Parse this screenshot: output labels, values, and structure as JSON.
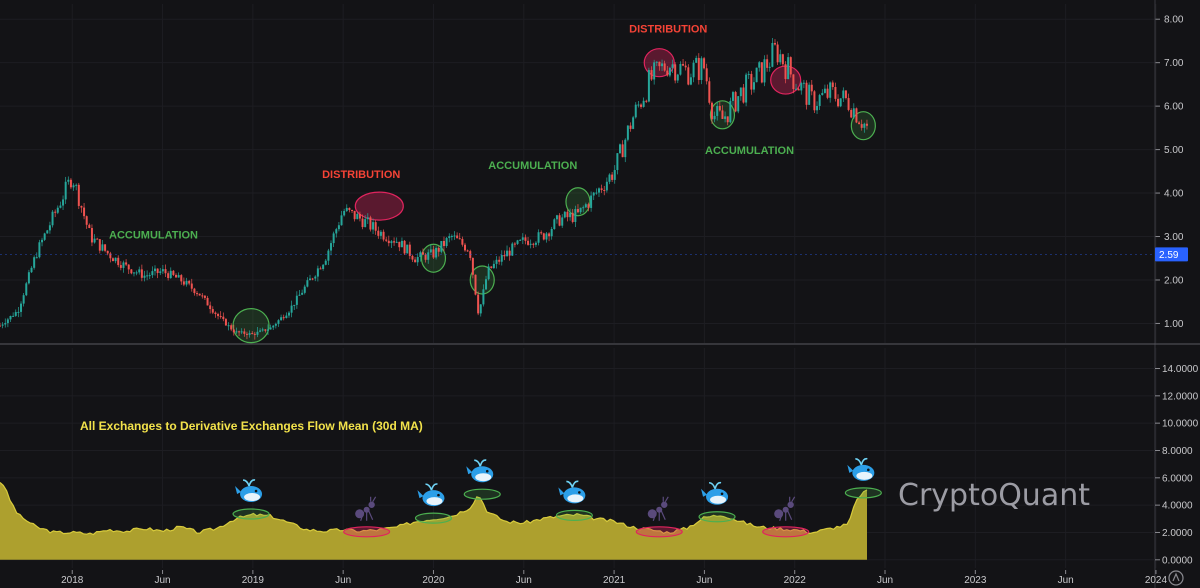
{
  "chart_data": [
    {
      "type": "candlestick",
      "x_ticks": [
        "2018",
        "Jun",
        "2019",
        "Jun",
        "2020",
        "Jun",
        "2021",
        "Jun",
        "2022",
        "Jun",
        "2023",
        "Jun",
        "2024"
      ],
      "y_ticks": [
        "1.00",
        "2.00",
        "3.00",
        "4.00",
        "5.00",
        "6.00",
        "7.00",
        "8.00"
      ],
      "ylim": [
        0.55,
        8.35
      ],
      "last_price": "2.59",
      "series": [
        {
          "x": [
            2017.6,
            2017.7,
            2017.8,
            2017.9,
            2018.0,
            2018.1,
            2018.2,
            2018.3,
            2018.4,
            2018.5,
            2018.6,
            2018.7,
            2018.8,
            2018.9,
            2019.0,
            2019.1,
            2019.2,
            2019.3,
            2019.4,
            2019.5,
            2019.6,
            2019.7,
            2019.8,
            2019.9,
            2020.0,
            2020.1,
            2020.2,
            2020.25,
            2020.3,
            2020.4,
            2020.5,
            2020.6,
            2020.7,
            2020.8,
            2020.9,
            2021.0,
            2021.1,
            2021.2,
            2021.3,
            2021.4,
            2021.5,
            2021.55,
            2021.6,
            2021.7,
            2021.8,
            2021.9,
            2022.0,
            2022.1,
            2022.2,
            2022.3,
            2022.4
          ],
          "values": [
            0.95,
            1.3,
            2.6,
            3.5,
            4.4,
            3.0,
            2.6,
            2.3,
            2.1,
            2.2,
            2.0,
            1.7,
            1.2,
            0.8,
            0.75,
            0.9,
            1.3,
            1.9,
            2.5,
            3.6,
            3.4,
            3.1,
            2.9,
            2.5,
            2.6,
            3.0,
            2.7,
            1.2,
            2.2,
            2.6,
            2.9,
            3.0,
            3.4,
            3.5,
            4.0,
            4.5,
            5.7,
            6.6,
            7.0,
            6.8,
            6.9,
            5.8,
            5.7,
            6.3,
            6.7,
            7.3,
            6.6,
            6.1,
            6.3,
            6.1,
            5.5
          ]
        }
      ],
      "annotations": [
        {
          "label": "ACCUMULATION",
          "color": "#4caf50",
          "x": 2018.45,
          "y": 2.95
        },
        {
          "label": "DISTRIBUTION",
          "color": "#f44336",
          "x": 2019.6,
          "y": 4.35
        },
        {
          "label": "ACCUMULATION",
          "color": "#4caf50",
          "x": 2020.55,
          "y": 4.55
        },
        {
          "label": "DISTRIBUTION",
          "color": "#f44336",
          "x": 2021.3,
          "y": 7.7
        },
        {
          "label": "ACCUMULATION",
          "color": "#4caf50",
          "x": 2021.75,
          "y": 4.9
        }
      ],
      "zones": [
        {
          "kind": "accumulation",
          "color": "#4caf50",
          "x": 2018.99,
          "y": 0.95
        },
        {
          "kind": "distribution",
          "color": "#e0245e",
          "x": 2019.7,
          "y": 3.7
        },
        {
          "kind": "accumulation",
          "color": "#4caf50",
          "x": 2020.0,
          "y": 2.5
        },
        {
          "kind": "accumulation",
          "color": "#4caf50",
          "x": 2020.27,
          "y": 2.0
        },
        {
          "kind": "accumulation",
          "color": "#4caf50",
          "x": 2020.8,
          "y": 3.8
        },
        {
          "kind": "distribution",
          "color": "#e0245e",
          "x": 2021.25,
          "y": 7.0
        },
        {
          "kind": "accumulation",
          "color": "#4caf50",
          "x": 2021.6,
          "y": 5.8
        },
        {
          "kind": "distribution",
          "color": "#e0245e",
          "x": 2021.95,
          "y": 6.6
        },
        {
          "kind": "accumulation",
          "color": "#4caf50",
          "x": 2022.38,
          "y": 5.55
        }
      ]
    },
    {
      "type": "area",
      "title": "All Exchanges to Derivative Exchanges Flow Mean (30d MA)",
      "y_ticks": [
        "0.0000",
        "2.0000",
        "4.0000",
        "6.0000",
        "8.0000",
        "10.0000",
        "12.0000",
        "14.0000"
      ],
      "ylim": [
        -0.6,
        15.5
      ],
      "fill_color": "#b5a82f",
      "series": [
        {
          "x": [
            2017.6,
            2017.62,
            2017.65,
            2017.7,
            2017.8,
            2017.9,
            2018.0,
            2018.1,
            2018.2,
            2018.3,
            2018.4,
            2018.5,
            2018.6,
            2018.7,
            2018.8,
            2018.9,
            2019.0,
            2019.1,
            2019.2,
            2019.3,
            2019.4,
            2019.5,
            2019.6,
            2019.7,
            2019.8,
            2019.9,
            2020.0,
            2020.1,
            2020.2,
            2020.25,
            2020.3,
            2020.4,
            2020.5,
            2020.6,
            2020.7,
            2020.8,
            2020.9,
            2021.0,
            2021.1,
            2021.2,
            2021.3,
            2021.4,
            2021.5,
            2021.6,
            2021.7,
            2021.8,
            2021.9,
            2022.0,
            2022.1,
            2022.2,
            2022.3,
            2022.33,
            2022.37,
            2022.4
          ],
          "values": [
            5.7,
            5.5,
            4.5,
            3.3,
            2.4,
            2.0,
            2.0,
            1.9,
            2.2,
            2.1,
            2.3,
            2.1,
            2.4,
            2.0,
            2.3,
            3.0,
            3.3,
            3.2,
            2.7,
            2.2,
            2.1,
            2.2,
            2.1,
            2.2,
            2.4,
            2.8,
            3.0,
            3.2,
            3.8,
            4.8,
            3.5,
            2.8,
            2.7,
            3.0,
            3.2,
            3.3,
            3.0,
            2.8,
            2.4,
            2.2,
            2.0,
            2.3,
            3.1,
            3.3,
            2.8,
            2.4,
            2.3,
            2.2,
            2.0,
            2.3,
            2.6,
            4.0,
            4.9,
            5.0
          ]
        }
      ],
      "zones": [
        {
          "kind": "whale",
          "color": "#4caf50",
          "x": 2018.99,
          "y": 3.35
        },
        {
          "kind": "retail",
          "color": "#e0245e",
          "x": 2019.63,
          "y": 2.05
        },
        {
          "kind": "whale",
          "color": "#4caf50",
          "x": 2020.0,
          "y": 3.05
        },
        {
          "kind": "whale",
          "color": "#4caf50",
          "x": 2020.27,
          "y": 4.8
        },
        {
          "kind": "whale",
          "color": "#4caf50",
          "x": 2020.78,
          "y": 3.25
        },
        {
          "kind": "retail",
          "color": "#e0245e",
          "x": 2021.25,
          "y": 2.05
        },
        {
          "kind": "whale",
          "color": "#4caf50",
          "x": 2021.57,
          "y": 3.15
        },
        {
          "kind": "retail",
          "color": "#e0245e",
          "x": 2021.95,
          "y": 2.05
        },
        {
          "kind": "whale",
          "color": "#4caf50",
          "x": 2022.38,
          "y": 4.9
        }
      ]
    }
  ],
  "watermark": "CryptoQuant"
}
